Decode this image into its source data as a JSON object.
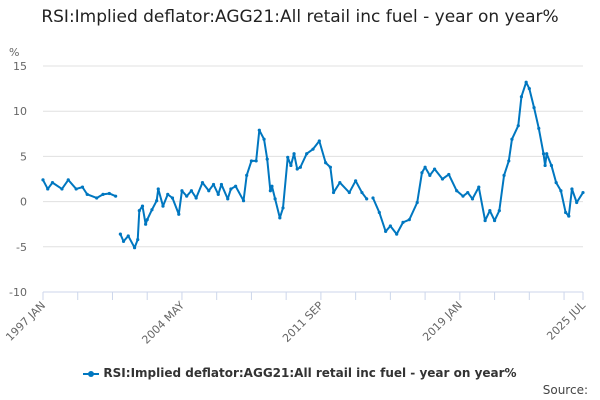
{
  "chart_data": {
    "type": "line",
    "title": "RSI:Implied deflator:AGG21:All retail inc fuel - year on year%",
    "ylabel": "%",
    "xlabel": "",
    "ylim": [
      -10,
      15
    ],
    "yticks": [
      "15",
      "10",
      "5",
      "0",
      "-5",
      "-10"
    ],
    "xrange": [
      "1997-01",
      "2025-07"
    ],
    "xtick_labels": [
      {
        "date": "1997-01",
        "label": "1997 JAN"
      },
      {
        "date": "2004-05",
        "label": "2004 MAY"
      },
      {
        "date": "2011-09",
        "label": "2011 SEP"
      },
      {
        "date": "2019-01",
        "label": "2019 JAN"
      },
      {
        "date": "2025-07",
        "label": "2025 JUL"
      }
    ],
    "grid": true,
    "legend_position": "bottom",
    "series": [
      {
        "name": "RSI:Implied deflator:AGG21:All retail inc fuel - year on year%",
        "color": "#0077c0",
        "points": [
          [
            "1997-01",
            2.4
          ],
          [
            "1997-04",
            1.4
          ],
          [
            "1997-07",
            2.1
          ],
          [
            "1998-01",
            1.4
          ],
          [
            "1998-05",
            2.4
          ],
          [
            "1998-10",
            1.4
          ],
          [
            "1999-02",
            1.6
          ],
          [
            "1999-05",
            0.8
          ],
          [
            "1999-11",
            0.4
          ],
          [
            "2000-03",
            0.8
          ],
          [
            "2000-07",
            0.9
          ],
          [
            "2000-11",
            0.6
          ],
          null,
          [
            "2001-02",
            -3.6
          ],
          [
            "2001-04",
            -4.4
          ],
          [
            "2001-07",
            -3.8
          ],
          [
            "2001-11",
            -5.1
          ],
          [
            "2002-01",
            -4.2
          ],
          [
            "2002-02",
            -1.0
          ],
          [
            "2002-04",
            -0.5
          ],
          [
            "2002-06",
            -2.5
          ],
          [
            "2002-07",
            -2.0
          ],
          [
            "2002-10",
            -0.9
          ],
          [
            "2003-01",
            0.1
          ],
          [
            "2003-02",
            1.4
          ],
          [
            "2003-05",
            -0.5
          ],
          [
            "2003-08",
            0.8
          ],
          [
            "2003-11",
            0.4
          ],
          [
            "2004-03",
            -1.4
          ],
          [
            "2004-05",
            1.2
          ],
          [
            "2004-08",
            0.6
          ],
          [
            "2004-11",
            1.2
          ],
          [
            "2005-02",
            0.4
          ],
          [
            "2005-06",
            2.1
          ],
          [
            "2005-10",
            1.2
          ],
          [
            "2006-01",
            1.9
          ],
          [
            "2006-04",
            0.8
          ],
          [
            "2006-06",
            1.9
          ],
          [
            "2006-10",
            0.3
          ],
          [
            "2006-12",
            1.4
          ],
          [
            "2007-03",
            1.7
          ],
          [
            "2007-08",
            0.1
          ],
          [
            "2007-10",
            2.9
          ],
          [
            "2008-01",
            4.5
          ],
          [
            "2008-04",
            4.5
          ],
          [
            "2008-06",
            7.9
          ],
          [
            "2008-09",
            6.9
          ],
          [
            "2008-11",
            4.7
          ],
          [
            "2009-01",
            1.2
          ],
          [
            "2009-02",
            1.7
          ],
          [
            "2009-04",
            0.3
          ],
          [
            "2009-07",
            -1.8
          ],
          [
            "2009-09",
            -0.7
          ],
          [
            "2009-12",
            4.9
          ],
          [
            "2010-02",
            4.0
          ],
          [
            "2010-04",
            5.3
          ],
          [
            "2010-06",
            3.6
          ],
          [
            "2010-08",
            3.8
          ],
          [
            "2010-12",
            5.3
          ],
          [
            "2011-04",
            5.8
          ],
          [
            "2011-08",
            6.7
          ],
          [
            "2011-12",
            4.3
          ],
          [
            "2012-03",
            3.8
          ],
          [
            "2012-05",
            1.0
          ],
          [
            "2012-09",
            2.1
          ],
          [
            "2013-03",
            1.0
          ],
          [
            "2013-07",
            2.3
          ],
          [
            "2013-11",
            1.0
          ],
          [
            "2014-02",
            0.3
          ],
          null,
          [
            "2014-06",
            0.4
          ],
          [
            "2014-10",
            -1.2
          ],
          [
            "2015-02",
            -3.3
          ],
          [
            "2015-05",
            -2.7
          ],
          [
            "2015-09",
            -3.6
          ],
          [
            "2016-01",
            -2.3
          ],
          [
            "2016-05",
            -2.0
          ],
          [
            "2016-10",
            -0.1
          ],
          [
            "2017-01",
            3.2
          ],
          [
            "2017-03",
            3.8
          ],
          [
            "2017-06",
            2.9
          ],
          [
            "2017-09",
            3.6
          ],
          [
            "2018-02",
            2.5
          ],
          [
            "2018-06",
            3.0
          ],
          [
            "2018-11",
            1.2
          ],
          [
            "2019-03",
            0.6
          ],
          [
            "2019-06",
            1.0
          ],
          [
            "2019-09",
            0.3
          ],
          [
            "2020-01",
            1.6
          ],
          [
            "2020-05",
            -2.1
          ],
          [
            "2020-08",
            -1.0
          ],
          [
            "2020-11",
            -2.1
          ],
          [
            "2021-02",
            -1.0
          ],
          [
            "2021-05",
            2.9
          ],
          [
            "2021-08",
            4.5
          ],
          [
            "2021-10",
            6.9
          ],
          [
            "2022-02",
            8.4
          ],
          [
            "2022-04",
            11.6
          ],
          [
            "2022-07",
            13.2
          ],
          [
            "2022-09",
            12.5
          ],
          [
            "2022-12",
            10.4
          ],
          [
            "2023-03",
            8.1
          ],
          [
            "2023-06",
            5.3
          ],
          [
            "2023-07",
            4.0
          ],
          [
            "2023-08",
            5.3
          ],
          [
            "2023-11",
            4.0
          ],
          [
            "2024-02",
            2.1
          ],
          [
            "2024-05",
            1.2
          ],
          [
            "2024-08",
            -1.2
          ],
          [
            "2024-10",
            -1.6
          ],
          [
            "2024-12",
            1.4
          ],
          [
            "2025-03",
            -0.1
          ],
          [
            "2025-07",
            1.0
          ]
        ]
      }
    ]
  },
  "source_label": "Source:"
}
